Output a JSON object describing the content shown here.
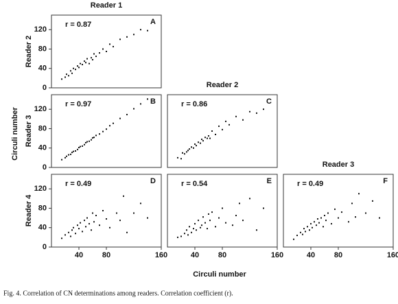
{
  "chart_data": [
    {
      "type": "scatter",
      "title": "Reader 1",
      "ylabel": "Reader 2",
      "annotation": "r = 0.87",
      "panel": "A",
      "color": "#111111",
      "x": [
        15,
        20,
        22,
        25,
        28,
        30,
        32,
        35,
        38,
        40,
        42,
        45,
        48,
        50,
        52,
        55,
        58,
        60,
        62,
        65,
        70,
        75,
        80,
        85,
        90,
        100,
        110,
        120,
        130,
        140
      ],
      "y": [
        18,
        22,
        28,
        25,
        35,
        30,
        40,
        38,
        45,
        42,
        50,
        48,
        55,
        52,
        60,
        50,
        62,
        58,
        70,
        65,
        72,
        80,
        75,
        90,
        85,
        100,
        105,
        110,
        120,
        118
      ],
      "xlim": [
        0,
        160
      ],
      "ylim": [
        0,
        150
      ],
      "yticks": [
        0,
        40,
        80,
        120
      ]
    },
    {
      "type": "scatter",
      "ylabel": "Reader 3",
      "annotation": "r = 0.97",
      "panel": "B",
      "color": "#111111",
      "x": [
        15,
        20,
        22,
        25,
        28,
        30,
        32,
        35,
        38,
        40,
        42,
        45,
        48,
        50,
        52,
        55,
        58,
        60,
        62,
        65,
        70,
        75,
        80,
        85,
        90,
        100,
        110,
        120,
        130,
        140
      ],
      "y": [
        16,
        20,
        23,
        26,
        27,
        31,
        33,
        34,
        37,
        41,
        43,
        44,
        47,
        51,
        53,
        54,
        57,
        61,
        62,
        66,
        69,
        74,
        79,
        86,
        91,
        101,
        109,
        121,
        131,
        141
      ],
      "xlim": [
        0,
        160
      ],
      "ylim": [
        0,
        150
      ],
      "yticks": [
        0,
        40,
        80,
        120
      ]
    },
    {
      "type": "scatter",
      "title": "Reader 2",
      "annotation": "r = 0.86",
      "panel": "C",
      "color": "#111111",
      "x": [
        15,
        20,
        22,
        25,
        28,
        30,
        32,
        35,
        38,
        40,
        42,
        45,
        48,
        50,
        52,
        55,
        58,
        60,
        62,
        65,
        70,
        75,
        80,
        85,
        90,
        100,
        110,
        120,
        130,
        140
      ],
      "y": [
        20,
        18,
        30,
        28,
        32,
        35,
        38,
        42,
        40,
        48,
        45,
        52,
        50,
        58,
        55,
        62,
        60,
        65,
        60,
        75,
        68,
        85,
        78,
        95,
        88,
        105,
        98,
        115,
        112,
        120
      ],
      "xlim": [
        0,
        160
      ],
      "ylim": [
        0,
        150
      ]
    },
    {
      "type": "scatter",
      "ylabel": "Reader 4",
      "annotation": "r = 0.49",
      "panel": "D",
      "color": "#111111",
      "x": [
        15,
        20,
        25,
        28,
        30,
        32,
        35,
        38,
        40,
        42,
        45,
        48,
        50,
        52,
        55,
        58,
        60,
        62,
        65,
        70,
        75,
        80,
        85,
        95,
        100,
        105,
        110,
        120,
        130,
        140
      ],
      "y": [
        18,
        25,
        30,
        22,
        35,
        40,
        28,
        45,
        38,
        50,
        32,
        55,
        42,
        60,
        48,
        35,
        70,
        52,
        65,
        45,
        75,
        58,
        40,
        70,
        55,
        105,
        30,
        70,
        90,
        60
      ],
      "xlim": [
        0,
        160
      ],
      "ylim": [
        0,
        150
      ],
      "yticks": [
        0,
        40,
        80,
        120
      ],
      "xticks": [
        40,
        80,
        160
      ]
    },
    {
      "type": "scatter",
      "annotation": "r = 0.54",
      "panel": "E",
      "color": "#111111",
      "x": [
        15,
        20,
        25,
        28,
        30,
        32,
        35,
        38,
        40,
        42,
        45,
        48,
        50,
        52,
        55,
        58,
        60,
        62,
        65,
        70,
        75,
        80,
        85,
        95,
        100,
        105,
        110,
        120,
        130,
        140
      ],
      "y": [
        20,
        22,
        28,
        35,
        25,
        42,
        30,
        38,
        48,
        35,
        55,
        40,
        45,
        62,
        50,
        38,
        68,
        55,
        72,
        42,
        60,
        80,
        50,
        45,
        65,
        90,
        55,
        100,
        35,
        80
      ],
      "xlim": [
        0,
        160
      ],
      "ylim": [
        0,
        150
      ],
      "xticks": [
        40,
        80,
        160
      ]
    },
    {
      "type": "scatter",
      "title": "Reader 3",
      "annotation": "r = 0.49",
      "panel": "F",
      "color": "#111111",
      "x": [
        15,
        20,
        25,
        28,
        30,
        32,
        35,
        38,
        40,
        42,
        45,
        48,
        50,
        52,
        55,
        58,
        60,
        62,
        65,
        70,
        75,
        80,
        85,
        95,
        100,
        105,
        110,
        120,
        130,
        140
      ],
      "y": [
        16,
        24,
        30,
        26,
        38,
        32,
        42,
        35,
        48,
        40,
        52,
        45,
        58,
        50,
        60,
        42,
        65,
        55,
        70,
        48,
        78,
        60,
        72,
        52,
        90,
        62,
        110,
        70,
        95,
        60
      ],
      "xlim": [
        0,
        160
      ],
      "ylim": [
        0,
        150
      ],
      "xticks": [
        40,
        80,
        160
      ]
    }
  ],
  "xlabel": "Circuli number",
  "ylabel": "Circuli number",
  "caption": "Fig. 4. Correlation of CN determinations among readers. Correlation coefficient (r)."
}
